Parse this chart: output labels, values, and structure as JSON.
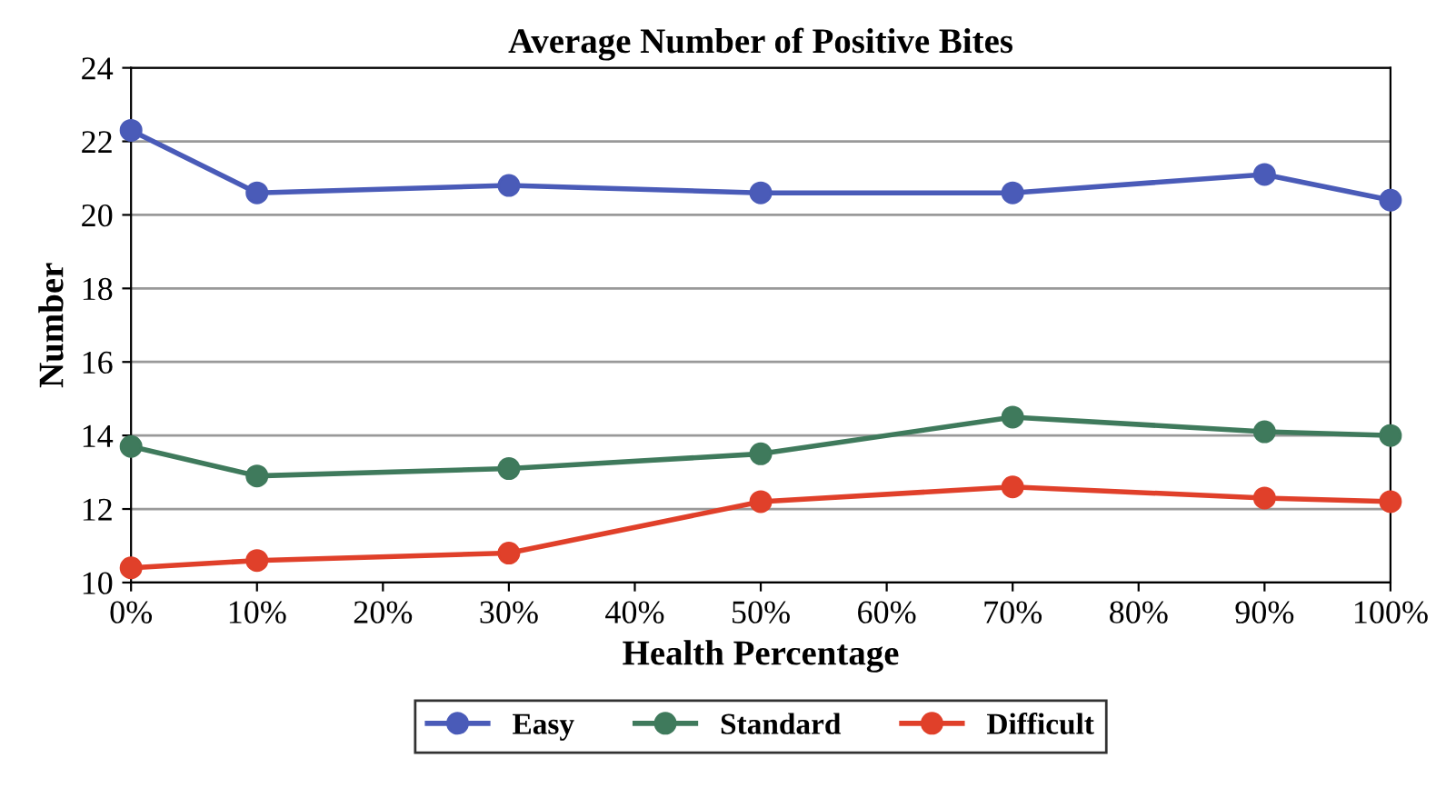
{
  "chart_data": {
    "type": "line",
    "title": "Average Number of Positive Bites",
    "xlabel": "Health Percentage",
    "ylabel": "Number",
    "x": [
      0,
      10,
      30,
      50,
      70,
      90,
      100
    ],
    "series": [
      {
        "name": "Easy",
        "color": "#4a5bb8",
        "values": [
          22.3,
          20.6,
          20.8,
          20.6,
          20.6,
          21.1,
          20.4
        ]
      },
      {
        "name": "Standard",
        "color": "#3f7a5c",
        "values": [
          13.7,
          12.9,
          13.1,
          13.5,
          14.5,
          14.1,
          14.0
        ]
      },
      {
        "name": "Difficult",
        "color": "#e0402a",
        "values": [
          10.4,
          10.6,
          10.8,
          12.2,
          12.6,
          12.3,
          12.2
        ]
      }
    ],
    "xlim": [
      0,
      100
    ],
    "ylim": [
      10,
      24
    ],
    "xticks": [
      {
        "value": 0,
        "label": "0%"
      },
      {
        "value": 10,
        "label": "10%"
      },
      {
        "value": 20,
        "label": "20%"
      },
      {
        "value": 30,
        "label": "30%"
      },
      {
        "value": 40,
        "label": "40%"
      },
      {
        "value": 50,
        "label": "50%"
      },
      {
        "value": 60,
        "label": "60%"
      },
      {
        "value": 70,
        "label": "70%"
      },
      {
        "value": 80,
        "label": "80%"
      },
      {
        "value": 90,
        "label": "90%"
      },
      {
        "value": 100,
        "label": "100%"
      }
    ],
    "yticks": [
      10,
      12,
      14,
      16,
      18,
      20,
      22,
      24
    ],
    "grid": "y",
    "legend": "bottom",
    "marker": "circle",
    "line_style": "solid"
  }
}
